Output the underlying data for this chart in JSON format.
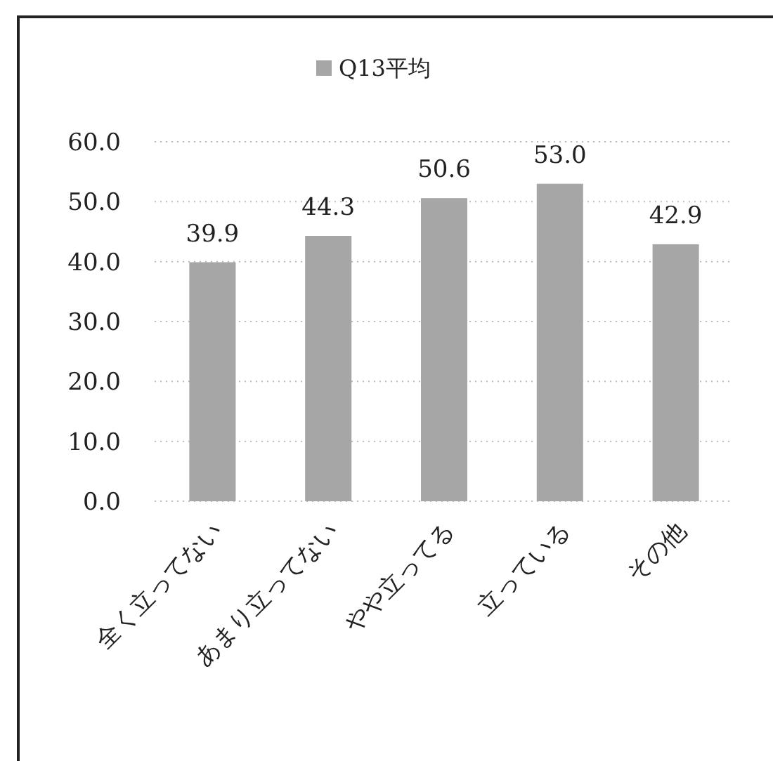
{
  "chart_data": {
    "type": "bar",
    "categories": [
      "全く立ってない",
      "あまり立ってない",
      "やや立ってる",
      "立っている",
      "その他"
    ],
    "series": [
      {
        "name": "Q13平均",
        "color": "#a6a6a6",
        "values": [
          39.9,
          44.3,
          50.6,
          53.0,
          42.9
        ],
        "value_labels": [
          "39.9",
          "44.3",
          "50.6",
          "53.0",
          "42.9"
        ]
      }
    ],
    "ylim": [
      0,
      60
    ],
    "yticks": [
      {
        "value": 0,
        "label": "0.0"
      },
      {
        "value": 10,
        "label": "10.0"
      },
      {
        "value": 20,
        "label": "20.0"
      },
      {
        "value": 30,
        "label": "30.0"
      },
      {
        "value": 40,
        "label": "40.0"
      },
      {
        "value": 50,
        "label": "50.0"
      },
      {
        "value": 60,
        "label": "60.0"
      }
    ],
    "grid": "y",
    "legend": "top"
  }
}
